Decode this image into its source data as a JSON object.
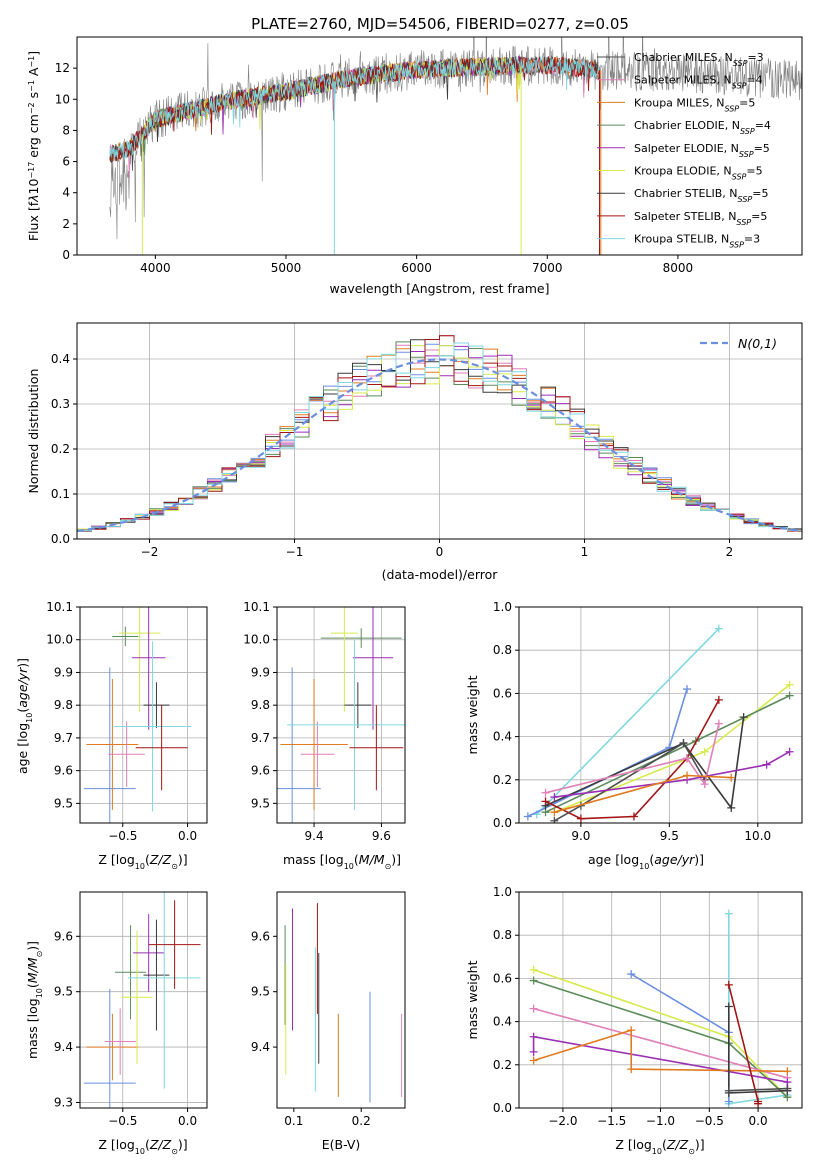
{
  "colors": {
    "chabrier_miles": "#4d4d4d",
    "salpeter_miles": "#e07fb8",
    "kroupa_miles": "#e07b20",
    "chabrier_elodie": "#5b8a5b",
    "salpeter_elodie": "#9a2fb5",
    "kroupa_elodie": "#d7ea4c",
    "chabrier_stelib": "#3a3a3a",
    "salpeter_stelib": "#a31515",
    "kroupa_stelib": "#7fd8e0",
    "blue": "#6a8fe0",
    "data": "#808080"
  },
  "chart_data": [
    {
      "id": "spectrum",
      "type": "line",
      "title": "PLATE=2760, MJD=54506, FIBERID=0277, z=0.05",
      "xlabel": "wavelength [Angstrom, rest frame]",
      "ylabel": "Flux [fλ10⁻¹⁷ erg cm⁻² s⁻¹ A⁻¹]",
      "xlim": [
        3400,
        8950
      ],
      "ylim": [
        0,
        14
      ],
      "xticks": [
        4000,
        5000,
        6000,
        7000,
        8000
      ],
      "yticks": [
        0,
        2,
        4,
        6,
        8,
        10,
        12
      ],
      "legend": "right",
      "series": [
        {
          "name": "Chabrier MILES, N_SSP=3",
          "key": "chabrier_miles",
          "range": [
            3650,
            7400
          ]
        },
        {
          "name": "Salpeter MILES, N_SSP=4",
          "key": "salpeter_miles",
          "range": [
            3650,
            7400
          ]
        },
        {
          "name": "Kroupa MILES, N_SSP=5",
          "key": "kroupa_miles",
          "range": [
            3650,
            7400
          ]
        },
        {
          "name": "Chabrier ELODIE, N_SSP=4",
          "key": "chabrier_elodie",
          "range": [
            3900,
            6800
          ]
        },
        {
          "name": "Salpeter ELODIE, N_SSP=5",
          "key": "salpeter_elodie",
          "range": [
            3900,
            6800
          ]
        },
        {
          "name": "Kroupa ELODIE, N_SSP=5",
          "key": "kroupa_elodie",
          "range": [
            3900,
            6800
          ]
        },
        {
          "name": "Chabrier STELIB, N_SSP=5",
          "key": "chabrier_stelib",
          "range": [
            3650,
            7400
          ]
        },
        {
          "name": "Salpeter STELIB, N_SSP=5",
          "key": "salpeter_stelib",
          "range": [
            3650,
            7400
          ]
        },
        {
          "name": "Kroupa STELIB, N_SSP=3",
          "key": "kroupa_stelib",
          "range": [
            3650,
            7400
          ]
        }
      ],
      "legend_labels": [
        {
          "pre": "Chabrier MILES, N",
          "sub": "SSP",
          "post": "=3"
        },
        {
          "pre": "Salpeter MILES, N",
          "sub": "SSP",
          "post": "=4"
        },
        {
          "pre": "Kroupa MILES, N",
          "sub": "SSP",
          "post": "=5"
        },
        {
          "pre": "Chabrier ELODIE, N",
          "sub": "SSP",
          "post": "=4"
        },
        {
          "pre": "Salpeter ELODIE, N",
          "sub": "SSP",
          "post": "=5"
        },
        {
          "pre": "Kroupa ELODIE, N",
          "sub": "SSP",
          "post": "=5"
        },
        {
          "pre": "Chabrier STELIB, N",
          "sub": "SSP",
          "post": "=5"
        },
        {
          "pre": "Salpeter STELIB, N",
          "sub": "SSP",
          "post": "=5"
        },
        {
          "pre": "Kroupa STELIB, N",
          "sub": "SSP",
          "post": "=3"
        }
      ],
      "continuum": [
        [
          3650,
          6.5
        ],
        [
          3800,
          6.8
        ],
        [
          4000,
          8.7
        ],
        [
          4500,
          9.8
        ],
        [
          5000,
          10.5
        ],
        [
          5500,
          11.4
        ],
        [
          6000,
          11.9
        ],
        [
          6500,
          12.1
        ],
        [
          7000,
          12.2
        ],
        [
          7500,
          11.8
        ],
        [
          8000,
          11.7
        ],
        [
          8950,
          11.2
        ]
      ]
    },
    {
      "id": "residuals",
      "type": "line",
      "xlabel": "(data-model)/error",
      "ylabel": "Normed distribution",
      "xlim": [
        -2.5,
        2.5
      ],
      "ylim": [
        0,
        0.48
      ],
      "xticks": [
        -2,
        -1,
        0,
        1,
        2
      ],
      "yticks": [
        0.0,
        0.1,
        0.2,
        0.3,
        0.4
      ],
      "grid": true,
      "legend": "top-right",
      "gaussian_label": "N(0,1)",
      "bin_width": 0.1
    },
    {
      "id": "age_vs_Z",
      "type": "scatter",
      "xlabel": "Z [log10(Z/Z☉)]",
      "ylabel": "age [log10(age/yr)]",
      "xlim": [
        -0.83,
        0.15
      ],
      "ylim": [
        9.44,
        10.1
      ],
      "xticks": [
        -0.5,
        0.0
      ],
      "yticks": [
        9.5,
        9.6,
        9.7,
        9.8,
        9.9,
        10.0,
        10.1
      ],
      "grid": true,
      "points": [
        {
          "key": "blue",
          "x": -0.6,
          "xerr": 0.2,
          "y": 9.545,
          "yerr": 0.37
        },
        {
          "key": "kroupa_miles",
          "x": -0.58,
          "xerr": 0.2,
          "y": 9.68,
          "yerr": 0.2
        },
        {
          "key": "salpeter_miles",
          "x": -0.47,
          "xerr": 0.14,
          "y": 9.65,
          "yerr": 0.1
        },
        {
          "key": "chabrier_elodie",
          "x": -0.48,
          "xerr": 0.1,
          "y": 10.01,
          "yerr": 0.03
        },
        {
          "key": "kroupa_elodie",
          "x": -0.37,
          "xerr": 0.16,
          "y": 10.02,
          "yerr": 0.24
        },
        {
          "key": "salpeter_elodie",
          "x": -0.3,
          "xerr": 0.13,
          "y": 9.945,
          "yerr": 0.22
        },
        {
          "key": "chabrier_stelib",
          "x": -0.24,
          "xerr": 0.1,
          "y": 9.8,
          "yerr": 0.07
        },
        {
          "key": "kroupa_stelib",
          "x": -0.27,
          "xerr": 0.3,
          "y": 9.735,
          "yerr": 0.26
        },
        {
          "key": "salpeter_stelib",
          "x": -0.2,
          "xerr": 0.2,
          "y": 9.67,
          "yerr": 0.13
        }
      ]
    },
    {
      "id": "age_vs_mass",
      "type": "scatter",
      "xlabel": "mass [log10(M/M☉)]",
      "xlim": [
        9.29,
        9.67
      ],
      "ylim": [
        9.44,
        10.1
      ],
      "xticks": [
        9.4,
        9.6
      ],
      "yticks": [
        9.5,
        9.6,
        9.7,
        9.8,
        9.9,
        10.0,
        10.1
      ],
      "grid": true,
      "points": [
        {
          "key": "blue",
          "x": 9.335,
          "xerr": 0.085,
          "y": 9.545,
          "yerr": 0.37
        },
        {
          "key": "kroupa_miles",
          "x": 9.4,
          "xerr": 0.1,
          "y": 9.68,
          "yerr": 0.2
        },
        {
          "key": "salpeter_miles",
          "x": 9.41,
          "xerr": 0.05,
          "y": 9.65,
          "yerr": 0.1
        },
        {
          "key": "chabrier_elodie",
          "x": 9.54,
          "xerr": 0.12,
          "y": 10.005,
          "yerr": 0.03
        },
        {
          "key": "kroupa_elodie",
          "x": 9.49,
          "xerr": 0.04,
          "y": 10.02,
          "yerr": 0.24
        },
        {
          "key": "salpeter_elodie",
          "x": 9.575,
          "xerr": 0.06,
          "y": 9.945,
          "yerr": 0.22
        },
        {
          "key": "chabrier_stelib",
          "x": 9.53,
          "xerr": 0.04,
          "y": 9.8,
          "yerr": 0.07
        },
        {
          "key": "kroupa_stelib",
          "x": 9.52,
          "xerr": 0.2,
          "y": 9.74,
          "yerr": 0.26
        },
        {
          "key": "salpeter_stelib",
          "x": 9.585,
          "xerr": 0.08,
          "y": 9.67,
          "yerr": 0.13
        }
      ]
    },
    {
      "id": "weight_vs_age",
      "type": "line",
      "xlabel": "age [log10(age/yr)]",
      "ylabel": "mass weight",
      "xlim": [
        8.65,
        10.25
      ],
      "ylim": [
        0,
        1
      ],
      "xticks": [
        9.0,
        9.5,
        10.0
      ],
      "yticks": [
        0.0,
        0.2,
        0.4,
        0.6,
        0.8,
        1.0
      ],
      "grid": true,
      "series": [
        {
          "key": "kroupa_stelib",
          "x": [
            8.75,
            9.78
          ],
          "y": [
            0.04,
            0.9
          ]
        },
        {
          "key": "blue",
          "x": [
            8.7,
            9.5,
            9.6
          ],
          "y": [
            0.03,
            0.35,
            0.62
          ]
        },
        {
          "key": "kroupa_elodie",
          "x": [
            8.85,
            9.7,
            10.18
          ],
          "y": [
            0.05,
            0.33,
            0.64
          ]
        },
        {
          "key": "chabrier_elodie",
          "x": [
            8.8,
            9.65,
            10.18
          ],
          "y": [
            0.05,
            0.38,
            0.59
          ]
        },
        {
          "key": "chabrier_stelib",
          "x": [
            8.8,
            9.58,
            9.85,
            9.92
          ],
          "y": [
            0.08,
            0.37,
            0.07,
            0.49
          ]
        },
        {
          "key": "salpeter_stelib",
          "x": [
            8.8,
            9.0,
            9.3,
            9.6,
            9.78
          ],
          "y": [
            0.1,
            0.02,
            0.03,
            0.3,
            0.57
          ]
        },
        {
          "key": "chabrier_miles",
          "x": [
            8.85,
            9.0,
            9.58,
            9.7
          ],
          "y": [
            0.01,
            0.08,
            0.37,
            0.2
          ]
        },
        {
          "key": "salpeter_miles",
          "x": [
            8.8,
            9.6,
            9.7,
            9.78
          ],
          "y": [
            0.14,
            0.3,
            0.18,
            0.46
          ]
        },
        {
          "key": "salpeter_elodie",
          "x": [
            8.85,
            9.6,
            10.05,
            10.18
          ],
          "y": [
            0.12,
            0.2,
            0.27,
            0.33
          ]
        },
        {
          "key": "kroupa_miles",
          "x": [
            8.85,
            9.6,
            9.85
          ],
          "y": [
            0.05,
            0.22,
            0.21
          ]
        }
      ]
    },
    {
      "id": "mass_vs_Z",
      "type": "scatter",
      "xlabel": "Z [log10(Z/Z☉)]",
      "ylabel": "mass [log10(M/M☉)]",
      "xlim": [
        -0.83,
        0.15
      ],
      "ylim": [
        9.29,
        9.68
      ],
      "xticks": [
        -0.5,
        0.0
      ],
      "yticks": [
        9.3,
        9.4,
        9.5,
        9.6
      ],
      "grid": true,
      "points": [
        {
          "key": "blue",
          "x": -0.6,
          "xerr": 0.2,
          "y": 9.335,
          "yerr": 0.17
        },
        {
          "key": "kroupa_miles",
          "x": -0.58,
          "xerr": 0.2,
          "y": 9.4,
          "yerr": 0.06
        },
        {
          "key": "salpeter_miles",
          "x": -0.52,
          "xerr": 0.12,
          "y": 9.41,
          "yerr": 0.06
        },
        {
          "key": "chabrier_elodie",
          "x": -0.44,
          "xerr": 0.12,
          "y": 9.535,
          "yerr": 0.085
        },
        {
          "key": "kroupa_elodie",
          "x": -0.39,
          "xerr": 0.12,
          "y": 9.49,
          "yerr": 0.12
        },
        {
          "key": "salpeter_elodie",
          "x": -0.3,
          "xerr": 0.12,
          "y": 9.57,
          "yerr": 0.07
        },
        {
          "key": "chabrier_stelib",
          "x": -0.24,
          "xerr": 0.1,
          "y": 9.53,
          "yerr": 0.1
        },
        {
          "key": "kroupa_stelib",
          "x": -0.18,
          "xerr": 0.28,
          "y": 9.525,
          "yerr": 0.2
        },
        {
          "key": "salpeter_stelib",
          "x": -0.1,
          "xerr": 0.2,
          "y": 9.585,
          "yerr": 0.08
        }
      ]
    },
    {
      "id": "mass_vs_ebv",
      "type": "scatter",
      "xlabel": "E(B-V)",
      "xlim": [
        0.075,
        0.265
      ],
      "ylim": [
        9.29,
        9.68
      ],
      "xticks": [
        0.1,
        0.2
      ],
      "yticks": [
        9.4,
        9.5,
        9.6
      ],
      "points": [
        {
          "key": "chabrier_elodie",
          "x": 0.087,
          "y": 9.53,
          "yerr": 0.09
        },
        {
          "key": "kroupa_elodie",
          "x": 0.088,
          "y": 9.45,
          "yerr": 0.1
        },
        {
          "key": "salpeter_elodie",
          "x": 0.098,
          "y": 9.54,
          "yerr": 0.11
        },
        {
          "key": "kroupa_stelib",
          "x": 0.132,
          "y": 9.45,
          "yerr": 0.13
        },
        {
          "key": "salpeter_stelib",
          "x": 0.135,
          "y": 9.56,
          "yerr": 0.1
        },
        {
          "key": "chabrier_stelib",
          "x": 0.137,
          "y": 9.47,
          "yerr": 0.1
        },
        {
          "key": "kroupa_miles",
          "x": 0.166,
          "y": 9.385,
          "yerr": 0.075
        },
        {
          "key": "blue",
          "x": 0.213,
          "y": 9.4,
          "yerr": 0.1
        },
        {
          "key": "salpeter_miles",
          "x": 0.26,
          "y": 9.385,
          "yerr": 0.075
        }
      ]
    },
    {
      "id": "weight_vs_Z",
      "type": "line",
      "xlabel": "Z [log10(Z/Z☉)]",
      "ylabel": "mass weight",
      "xlim": [
        -2.45,
        0.45
      ],
      "ylim": [
        0,
        1
      ],
      "xticks": [
        -2.0,
        -1.5,
        -1.0,
        -0.5,
        0.0
      ],
      "yticks": [
        0.0,
        0.2,
        0.4,
        0.6,
        0.8,
        1.0
      ],
      "grid": true,
      "series": [
        {
          "key": "kroupa_stelib",
          "x": [
            -0.3,
            -0.3,
            0.3
          ],
          "y": [
            0.9,
            0.02,
            0.06
          ]
        },
        {
          "key": "blue",
          "x": [
            -1.3,
            -0.3,
            -0.3
          ],
          "y": [
            0.62,
            0.35,
            0.03
          ]
        },
        {
          "key": "kroupa_elodie",
          "x": [
            -2.3,
            -0.3,
            0.3
          ],
          "y": [
            0.64,
            0.33,
            0.05
          ]
        },
        {
          "key": "chabrier_elodie",
          "x": [
            -2.3,
            -0.3,
            0.3
          ],
          "y": [
            0.59,
            0.3,
            0.05
          ]
        },
        {
          "key": "salpeter_miles",
          "x": [
            -2.3,
            0.3
          ],
          "y": [
            0.46,
            0.14
          ]
        },
        {
          "key": "salpeter_elodie",
          "x": [
            -2.3,
            -2.3,
            0.3,
            0.3
          ],
          "y": [
            0.26,
            0.33,
            0.12,
            0.08
          ]
        },
        {
          "key": "kroupa_miles",
          "x": [
            -2.3,
            -1.3,
            -1.3,
            0.3
          ],
          "y": [
            0.22,
            0.36,
            0.18,
            0.17
          ]
        },
        {
          "key": "chabrier_stelib",
          "x": [
            -0.3,
            -0.3,
            0.3
          ],
          "y": [
            0.47,
            0.07,
            0.08
          ]
        },
        {
          "key": "salpeter_stelib",
          "x": [
            -0.3,
            0.0,
            0.0
          ],
          "y": [
            0.57,
            0.03,
            0.02
          ]
        },
        {
          "key": "chabrier_miles",
          "x": [
            -0.3,
            0.3
          ],
          "y": [
            0.08,
            0.09
          ]
        }
      ]
    }
  ]
}
